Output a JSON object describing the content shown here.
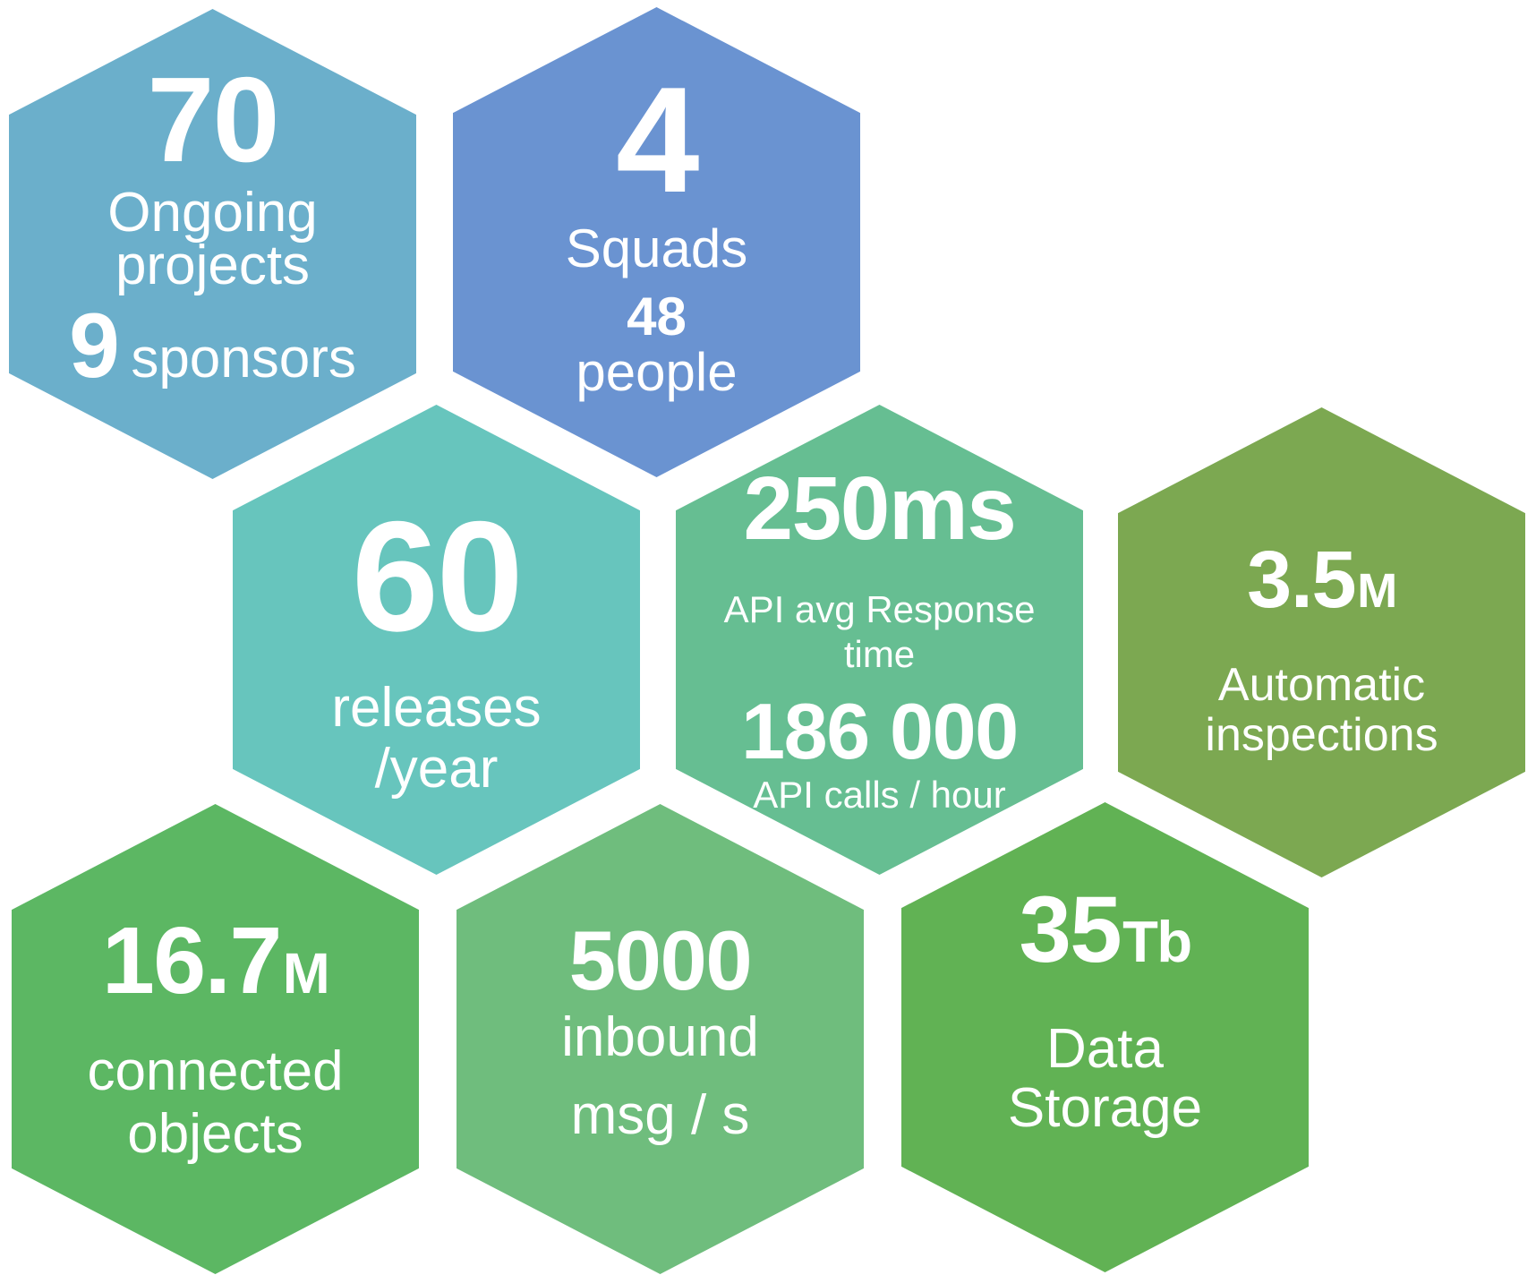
{
  "page": {
    "background": "#ffffff",
    "text_color": "#ffffff"
  },
  "hexagons": [
    {
      "id": "ongoing-projects",
      "color": "#6bafcb",
      "value": "70",
      "label_lines": [
        "Ongoing",
        "projects"
      ],
      "secondary_value": "9",
      "secondary_label": "sponsors"
    },
    {
      "id": "squads",
      "color": "#6a93d1",
      "value": "4",
      "label_lines": [
        "Squads"
      ],
      "secondary_value": "48",
      "secondary_label": "people"
    },
    {
      "id": "releases",
      "color": "#67c5bd",
      "value": "60",
      "label_lines": [
        "releases",
        "/year"
      ]
    },
    {
      "id": "api-performance",
      "color": "#66be92",
      "value": "250ms",
      "label_lines": [
        "API avg Response",
        "time"
      ],
      "secondary_value": "186 000",
      "secondary_label": "API calls / hour"
    },
    {
      "id": "automatic-inspections",
      "color": "#7ca851",
      "value": "3.5",
      "value_unit": "M",
      "label_lines": [
        "Automatic",
        "inspections"
      ]
    },
    {
      "id": "connected-objects",
      "color": "#5cb763",
      "value": "16.7",
      "value_unit": "M",
      "label_lines": [
        "connected",
        "objects"
      ]
    },
    {
      "id": "inbound-messages",
      "color": "#6fbd7d",
      "value": "5000",
      "label_lines": [
        "inbound",
        "msg / s"
      ]
    },
    {
      "id": "data-storage",
      "color": "#61b254",
      "value": "35",
      "value_unit": "Tb",
      "label_lines": [
        "Data",
        "Storage"
      ]
    }
  ]
}
